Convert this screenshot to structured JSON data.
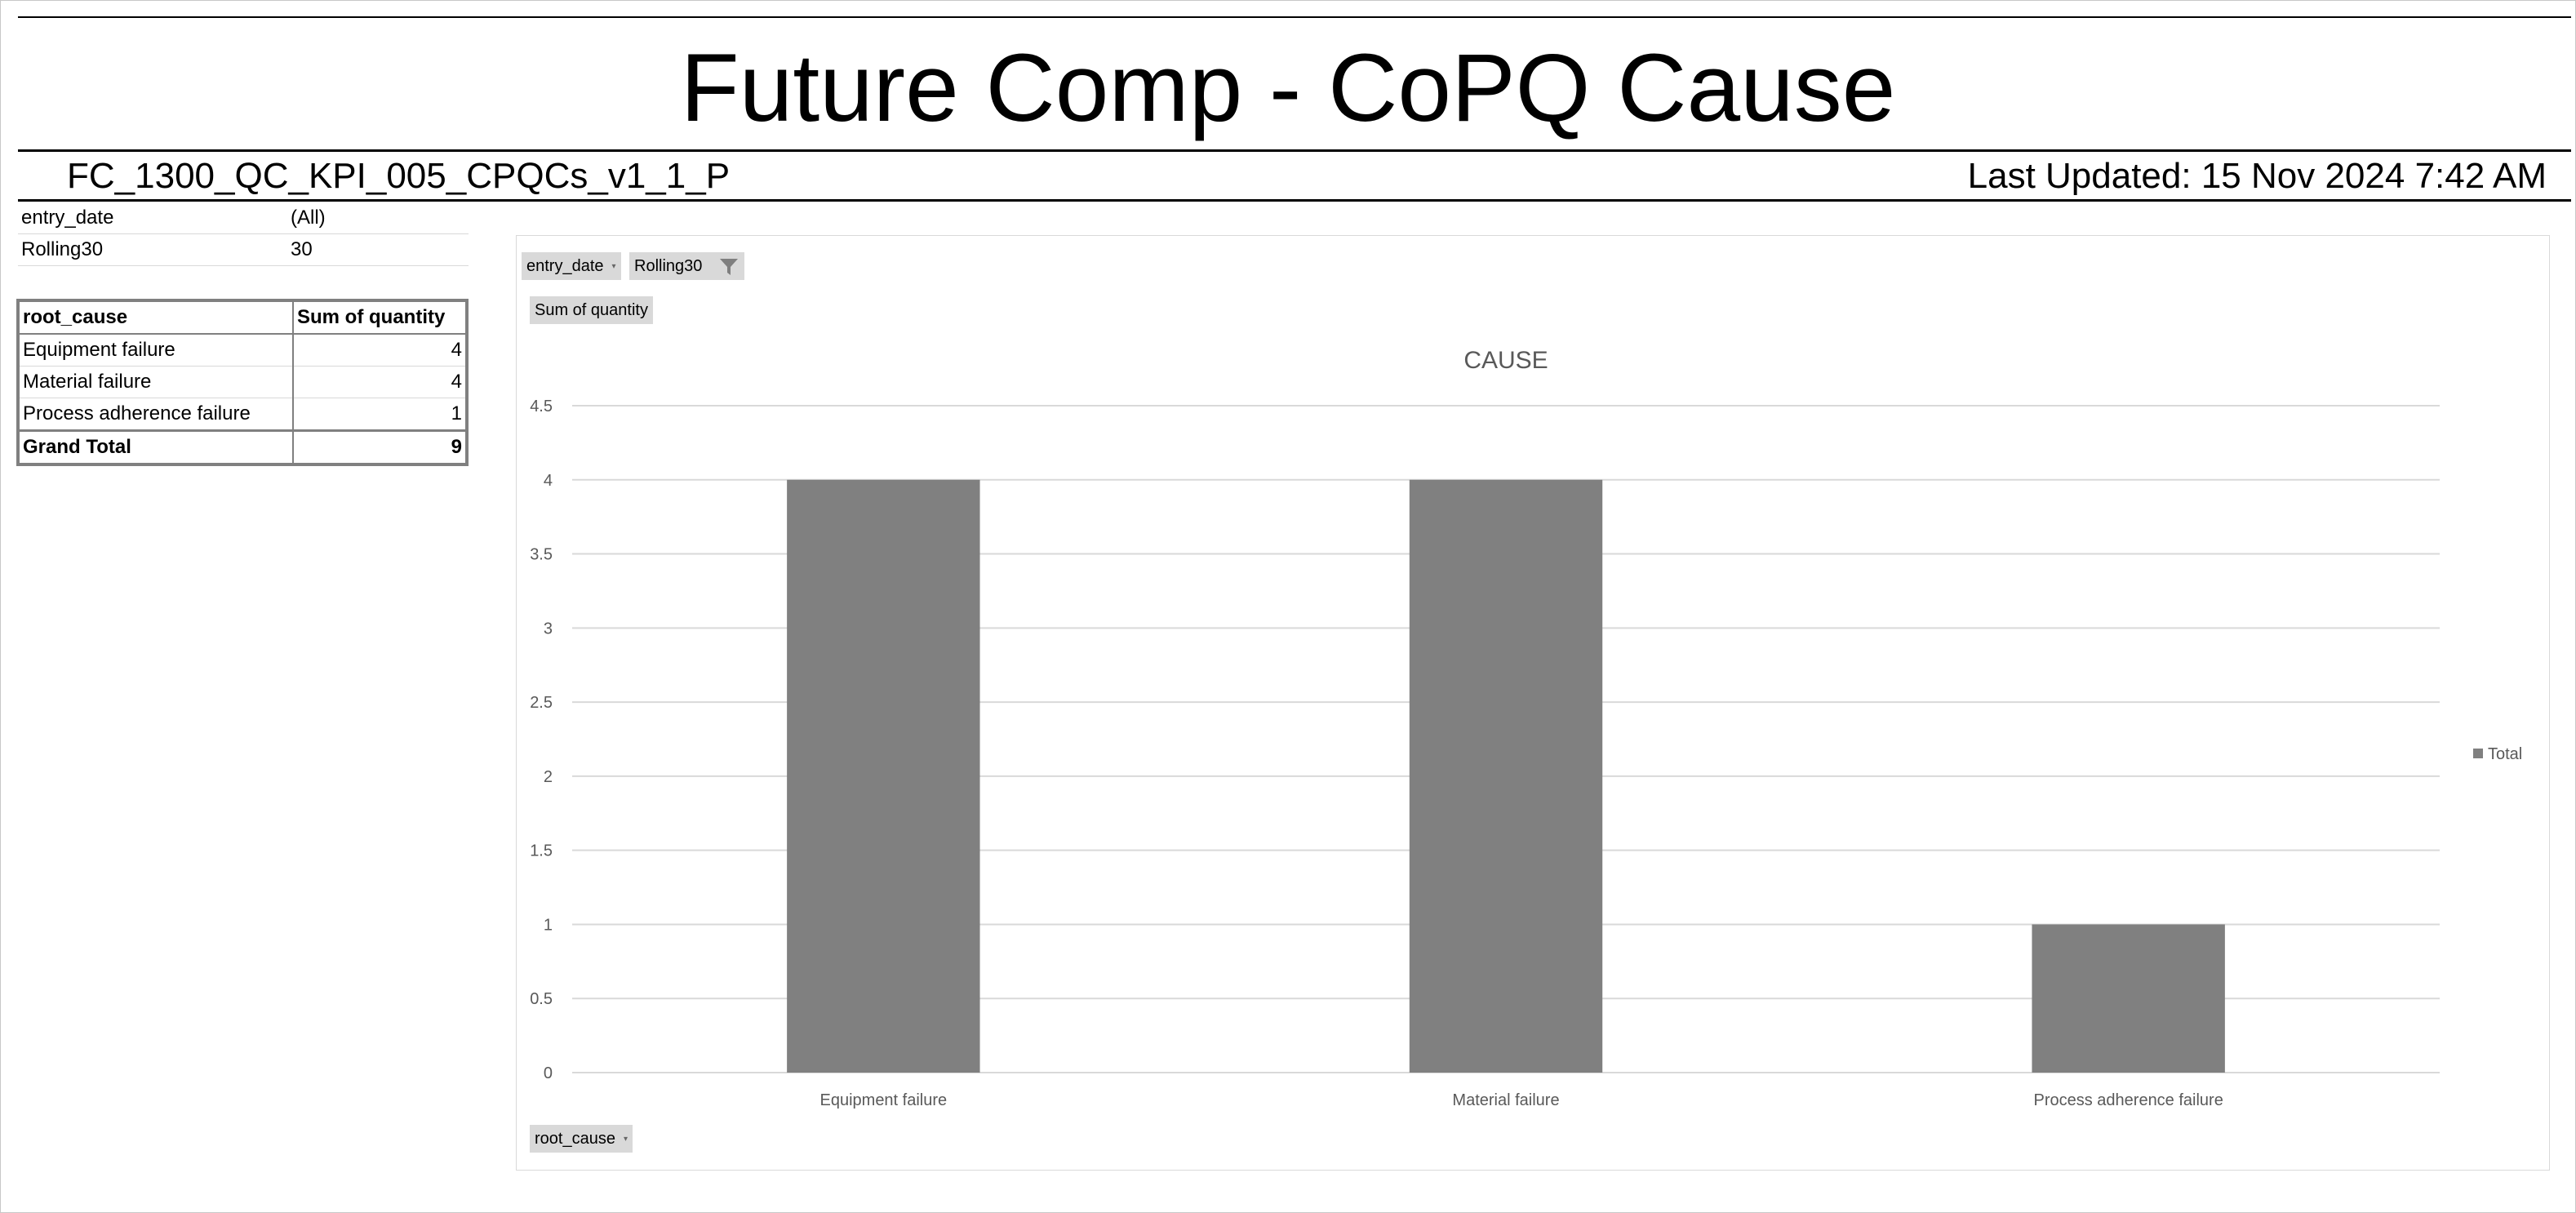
{
  "header": {
    "title": "Future Comp - CoPQ Cause",
    "report_id": "FC_1300_QC_KPI_005_CPQCs_v1_1_P",
    "last_updated": "Last Updated: 15 Nov 2024 7:42 AM"
  },
  "filters": [
    {
      "name": "entry_date",
      "value": "(All)"
    },
    {
      "name": "Rolling30",
      "value": "30"
    }
  ],
  "pivot": {
    "headers": [
      "root_cause",
      "Sum of quantity"
    ],
    "rows": [
      {
        "label": "Equipment failure",
        "value": "4"
      },
      {
        "label": "Material failure",
        "value": "4"
      },
      {
        "label": "Process adherence failure",
        "value": "1"
      }
    ],
    "total": {
      "label": "Grand Total",
      "value": "9"
    }
  },
  "chart_controls": {
    "filter_button_1": "entry_date",
    "filter_button_2": "Rolling30",
    "value_button": "Sum of quantity",
    "axis_button": "root_cause",
    "filter_icon": "funnel-icon",
    "dropdown_icon": "chevron-down-icon"
  },
  "chart_data": {
    "type": "bar",
    "title": "CAUSE",
    "categories": [
      "Equipment failure",
      "Material failure",
      "Process adherence failure"
    ],
    "series": [
      {
        "name": "Total",
        "values": [
          4,
          4,
          1
        ]
      }
    ],
    "ylim": [
      0,
      4.5
    ],
    "yticks": [
      "0",
      "0.5",
      "1",
      "1.5",
      "2",
      "2.5",
      "3",
      "3.5",
      "4",
      "4.5"
    ],
    "xlabel": "",
    "ylabel": "",
    "grid": true,
    "legend": "right",
    "bar_color": "#808080",
    "grid_color": "#d9d9d9"
  }
}
